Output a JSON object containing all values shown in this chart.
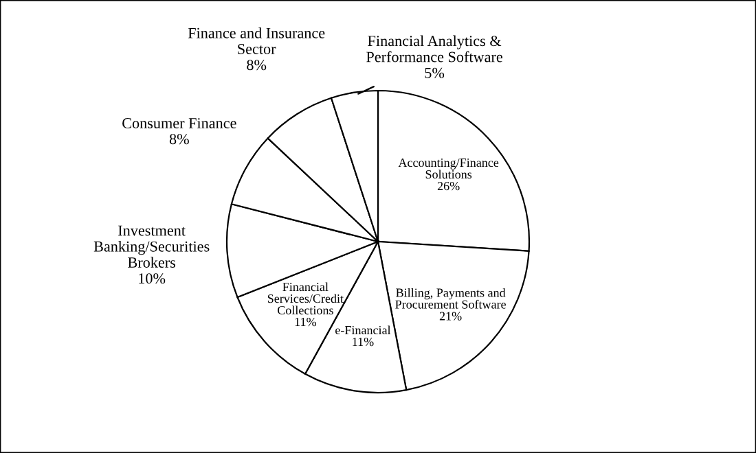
{
  "chart_data": {
    "type": "pie",
    "categories": [
      "Accounting/Finance\nSolutions",
      "Billing, Payments and\nProcurement Software",
      "e-Financial",
      "Financial\nServices/Credit\nCollections",
      "Investment\nBanking/Securities\nBrokers",
      "Consumer Finance",
      "Finance and Insurance\nSector",
      "Financial Analytics &\nPerformance Software"
    ],
    "values": [
      26,
      21,
      11,
      11,
      10,
      8,
      8,
      5
    ],
    "colors": [
      "#ffffff",
      "#ffffff",
      "#ffffff",
      "#ffffff",
      "#ffffff",
      "#ffffff",
      "#ffffff",
      "#ffffff"
    ],
    "value_labels": [
      "26%",
      "21%",
      "11%",
      "11%",
      "10%",
      "8%",
      "8%",
      "5%"
    ]
  }
}
